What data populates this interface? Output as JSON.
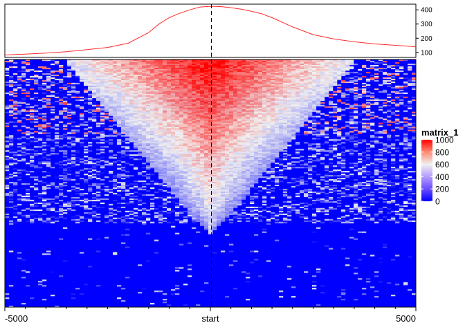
{
  "chart_data": [
    {
      "type": "line",
      "role": "enriched-score-profile",
      "x": [
        -5000,
        -4500,
        -4000,
        -3500,
        -3000,
        -2500,
        -2000,
        -1500,
        -1250,
        -1000,
        -750,
        -500,
        -250,
        0,
        250,
        500,
        750,
        1000,
        1250,
        1500,
        2000,
        2500,
        3000,
        3500,
        4000,
        4500,
        5000
      ],
      "values": [
        82,
        88,
        95,
        105,
        120,
        135,
        165,
        240,
        300,
        345,
        375,
        400,
        420,
        425,
        423,
        415,
        405,
        390,
        372,
        345,
        280,
        225,
        195,
        175,
        160,
        150,
        140
      ],
      "ylim": [
        65,
        440
      ],
      "yticks": [
        "100",
        "200",
        "300",
        "400"
      ],
      "ytick_values": [
        100,
        200,
        300,
        400
      ],
      "color": "#ff2a2a",
      "dashed_line_at": 0
    },
    {
      "type": "heatmap",
      "row_pattern": "rows sorted by signal: high-signal red core centered on start narrowing downward to blue background",
      "xticks": [
        "-5000",
        "start",
        "5000"
      ],
      "xtick_values": [
        -5000,
        0,
        5000
      ],
      "legend": {
        "title": "matrix_1",
        "labels": [
          "1000",
          "800",
          "600",
          "400",
          "200",
          "0"
        ],
        "values": [
          1000,
          800,
          600,
          400,
          200,
          0
        ]
      },
      "colors": {
        "low": "#0000ff",
        "mid": "#f0f0f0",
        "high": "#ff0000"
      },
      "color_breaks": [
        0,
        600,
        1000
      ]
    }
  ]
}
